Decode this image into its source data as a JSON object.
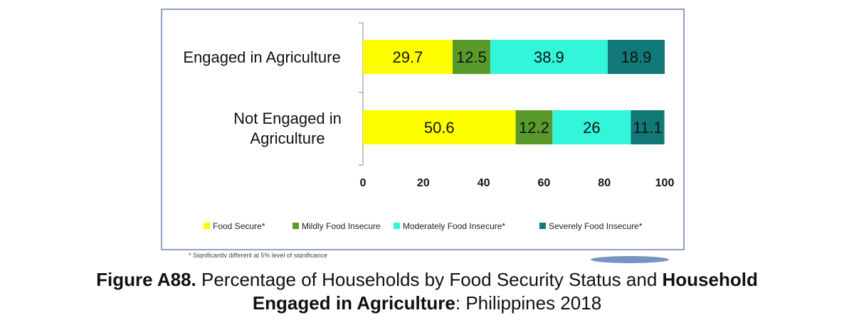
{
  "chart_data": {
    "type": "bar",
    "orientation": "horizontal",
    "stacked": true,
    "categories": [
      "Engaged in Agriculture",
      "Not Engaged in Agriculture"
    ],
    "series": [
      {
        "name": "Food Secure*",
        "color": "#ffff00",
        "values": [
          29.7,
          50.6
        ]
      },
      {
        "name": "Mildly Food Insecure",
        "color": "#5a9a2a",
        "values": [
          12.5,
          12.2
        ]
      },
      {
        "name": "Moderately Food Insecure*",
        "color": "#33f5d9",
        "values": [
          38.9,
          26
        ]
      },
      {
        "name": "Severely Food Insecure*",
        "color": "#117a78",
        "values": [
          18.9,
          11.1
        ]
      }
    ],
    "xlim": [
      0,
      100
    ],
    "xticks": [
      0,
      20,
      40,
      60,
      80,
      100
    ],
    "legend_position": "bottom",
    "grid": false
  },
  "footnote": "* Significantly different at 5% level of significance",
  "caption": {
    "figure_label": "Figure A88.",
    "text_1": " Percentage of Households by Food Security Status and ",
    "bold_1": "Household",
    "bold_2": "Engaged in Agriculture",
    "text_2": ": Philippines 2018"
  }
}
